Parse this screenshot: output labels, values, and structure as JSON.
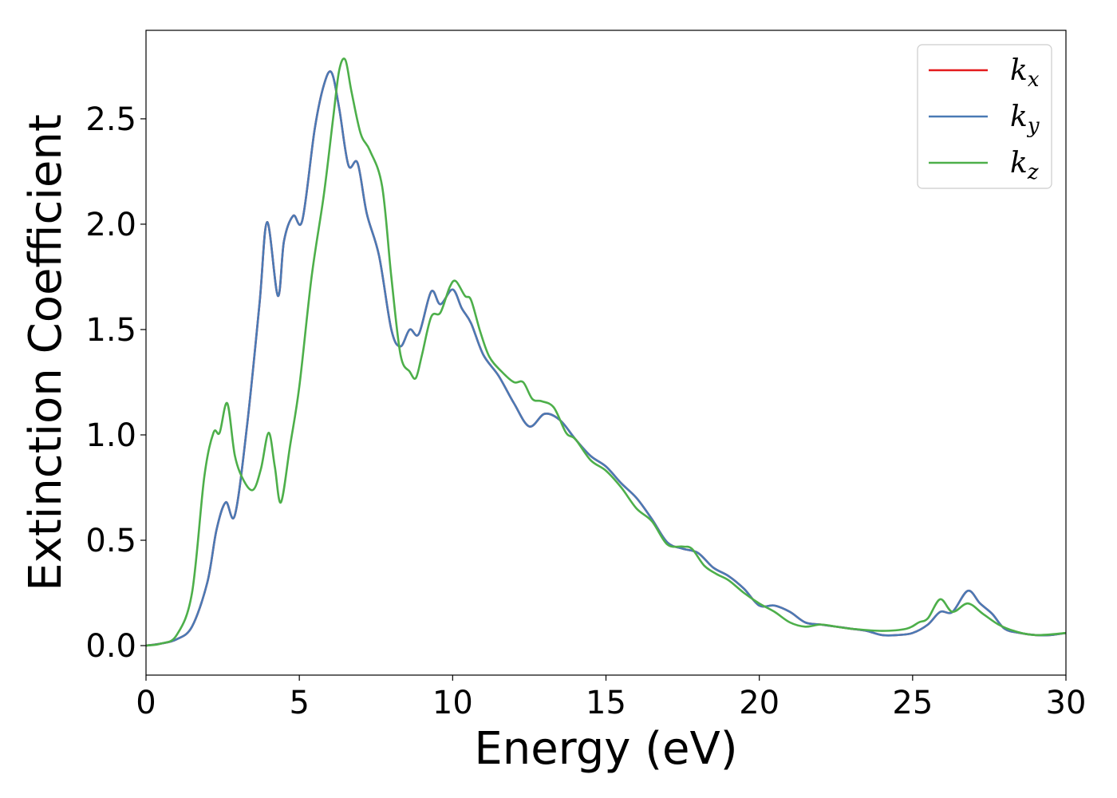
{
  "chart_data": {
    "type": "line",
    "xlabel": "Energy (eV)",
    "ylabel": "Extinction Coefficient",
    "xlim": [
      0,
      30
    ],
    "ylim": [
      -0.14,
      2.92
    ],
    "xticks": [
      0,
      5,
      10,
      15,
      20,
      25,
      30
    ],
    "yticks": [
      0.0,
      0.5,
      1.0,
      1.5,
      2.0,
      2.5
    ],
    "xtick_labels": [
      "0",
      "5",
      "10",
      "15",
      "20",
      "25",
      "30"
    ],
    "ytick_labels": [
      "0.0",
      "0.5",
      "1.0",
      "1.5",
      "2.0",
      "2.5"
    ],
    "grid": false,
    "legend_position": "top-right",
    "series": [
      {
        "name": "k_x",
        "label_base": "k",
        "label_sub": "x",
        "color": "#e41a1c",
        "x": [
          0,
          0.5,
          1,
          1.5,
          2,
          2.3,
          2.6,
          2.9,
          3.3,
          3.7,
          3.95,
          4.3,
          4.5,
          4.8,
          5.1,
          5.5,
          5.8,
          6.05,
          6.3,
          6.6,
          6.9,
          7.2,
          7.6,
          8.0,
          8.3,
          8.6,
          8.9,
          9.3,
          9.6,
          10.0,
          10.3,
          10.6,
          11.0,
          11.5,
          12.0,
          12.5,
          13.0,
          13.5,
          14.0,
          14.5,
          15.0,
          15.5,
          16.0,
          16.5,
          17.0,
          17.5,
          18.0,
          18.5,
          19.0,
          19.5,
          20.0,
          20.5,
          21.0,
          21.5,
          22.0,
          22.5,
          23.0,
          23.5,
          24.0,
          24.5,
          25.0,
          25.5,
          25.9,
          26.3,
          26.8,
          27.2,
          27.6,
          28.0,
          28.5,
          29.0,
          29.5,
          30.0
        ],
        "y": [
          0.0,
          0.01,
          0.03,
          0.09,
          0.3,
          0.55,
          0.68,
          0.62,
          1.05,
          1.62,
          2.01,
          1.66,
          1.92,
          2.04,
          2.02,
          2.45,
          2.66,
          2.72,
          2.55,
          2.28,
          2.29,
          2.05,
          1.85,
          1.5,
          1.42,
          1.5,
          1.48,
          1.68,
          1.62,
          1.69,
          1.6,
          1.53,
          1.38,
          1.28,
          1.15,
          1.04,
          1.1,
          1.07,
          0.98,
          0.9,
          0.85,
          0.77,
          0.7,
          0.6,
          0.49,
          0.46,
          0.44,
          0.37,
          0.33,
          0.27,
          0.19,
          0.19,
          0.16,
          0.11,
          0.1,
          0.09,
          0.08,
          0.07,
          0.05,
          0.05,
          0.06,
          0.1,
          0.16,
          0.16,
          0.26,
          0.2,
          0.15,
          0.08,
          0.06,
          0.05,
          0.05,
          0.06
        ]
      },
      {
        "name": "k_y",
        "label_base": "k",
        "label_sub": "y",
        "color": "#4a7ab5",
        "x": [
          0,
          0.5,
          1,
          1.5,
          2,
          2.3,
          2.6,
          2.9,
          3.3,
          3.7,
          3.95,
          4.3,
          4.5,
          4.8,
          5.1,
          5.5,
          5.8,
          6.05,
          6.3,
          6.6,
          6.9,
          7.2,
          7.6,
          8.0,
          8.3,
          8.6,
          8.9,
          9.3,
          9.6,
          10.0,
          10.3,
          10.6,
          11.0,
          11.5,
          12.0,
          12.5,
          13.0,
          13.5,
          14.0,
          14.5,
          15.0,
          15.5,
          16.0,
          16.5,
          17.0,
          17.5,
          18.0,
          18.5,
          19.0,
          19.5,
          20.0,
          20.5,
          21.0,
          21.5,
          22.0,
          22.5,
          23.0,
          23.5,
          24.0,
          24.5,
          25.0,
          25.5,
          25.9,
          26.3,
          26.8,
          27.2,
          27.6,
          28.0,
          28.5,
          29.0,
          29.5,
          30.0
        ],
        "y": [
          0.0,
          0.01,
          0.03,
          0.09,
          0.3,
          0.55,
          0.68,
          0.62,
          1.05,
          1.62,
          2.01,
          1.66,
          1.92,
          2.04,
          2.02,
          2.45,
          2.66,
          2.72,
          2.55,
          2.28,
          2.29,
          2.05,
          1.85,
          1.5,
          1.42,
          1.5,
          1.48,
          1.68,
          1.62,
          1.69,
          1.6,
          1.53,
          1.38,
          1.28,
          1.15,
          1.04,
          1.1,
          1.07,
          0.98,
          0.9,
          0.85,
          0.77,
          0.7,
          0.6,
          0.49,
          0.46,
          0.44,
          0.37,
          0.33,
          0.27,
          0.19,
          0.19,
          0.16,
          0.11,
          0.1,
          0.09,
          0.08,
          0.07,
          0.05,
          0.05,
          0.06,
          0.1,
          0.16,
          0.16,
          0.26,
          0.2,
          0.15,
          0.08,
          0.06,
          0.05,
          0.05,
          0.06
        ]
      },
      {
        "name": "k_z",
        "label_base": "k",
        "label_sub": "z",
        "color": "#4daf4a",
        "x": [
          0,
          0.5,
          1,
          1.5,
          1.9,
          2.2,
          2.4,
          2.65,
          2.9,
          3.2,
          3.5,
          3.75,
          4.0,
          4.2,
          4.4,
          4.7,
          5.0,
          5.4,
          5.8,
          6.1,
          6.3,
          6.5,
          6.7,
          7.0,
          7.3,
          7.7,
          8.0,
          8.3,
          8.6,
          8.8,
          9.0,
          9.3,
          9.6,
          9.9,
          10.1,
          10.4,
          10.6,
          10.9,
          11.2,
          11.6,
          12.0,
          12.3,
          12.6,
          12.9,
          13.3,
          13.7,
          14.0,
          14.5,
          15.0,
          15.5,
          16.0,
          16.5,
          17.0,
          17.5,
          17.8,
          18.2,
          18.6,
          19.0,
          19.5,
          20.0,
          20.5,
          21.0,
          21.5,
          22.0,
          22.5,
          23.0,
          24.0,
          24.8,
          25.2,
          25.5,
          25.9,
          26.3,
          26.8,
          27.3,
          27.8,
          28.3,
          29.0,
          30.0
        ],
        "y": [
          0.0,
          0.01,
          0.05,
          0.25,
          0.8,
          1.01,
          1.01,
          1.15,
          0.9,
          0.78,
          0.74,
          0.84,
          1.01,
          0.85,
          0.68,
          0.95,
          1.23,
          1.75,
          2.14,
          2.5,
          2.73,
          2.78,
          2.63,
          2.43,
          2.35,
          2.18,
          1.75,
          1.38,
          1.3,
          1.27,
          1.38,
          1.56,
          1.58,
          1.7,
          1.73,
          1.66,
          1.64,
          1.49,
          1.37,
          1.3,
          1.25,
          1.25,
          1.17,
          1.16,
          1.13,
          1.01,
          0.98,
          0.88,
          0.83,
          0.75,
          0.65,
          0.59,
          0.48,
          0.47,
          0.46,
          0.38,
          0.34,
          0.31,
          0.25,
          0.2,
          0.16,
          0.11,
          0.09,
          0.1,
          0.09,
          0.08,
          0.07,
          0.08,
          0.11,
          0.13,
          0.22,
          0.16,
          0.2,
          0.15,
          0.1,
          0.07,
          0.05,
          0.06
        ]
      }
    ]
  }
}
